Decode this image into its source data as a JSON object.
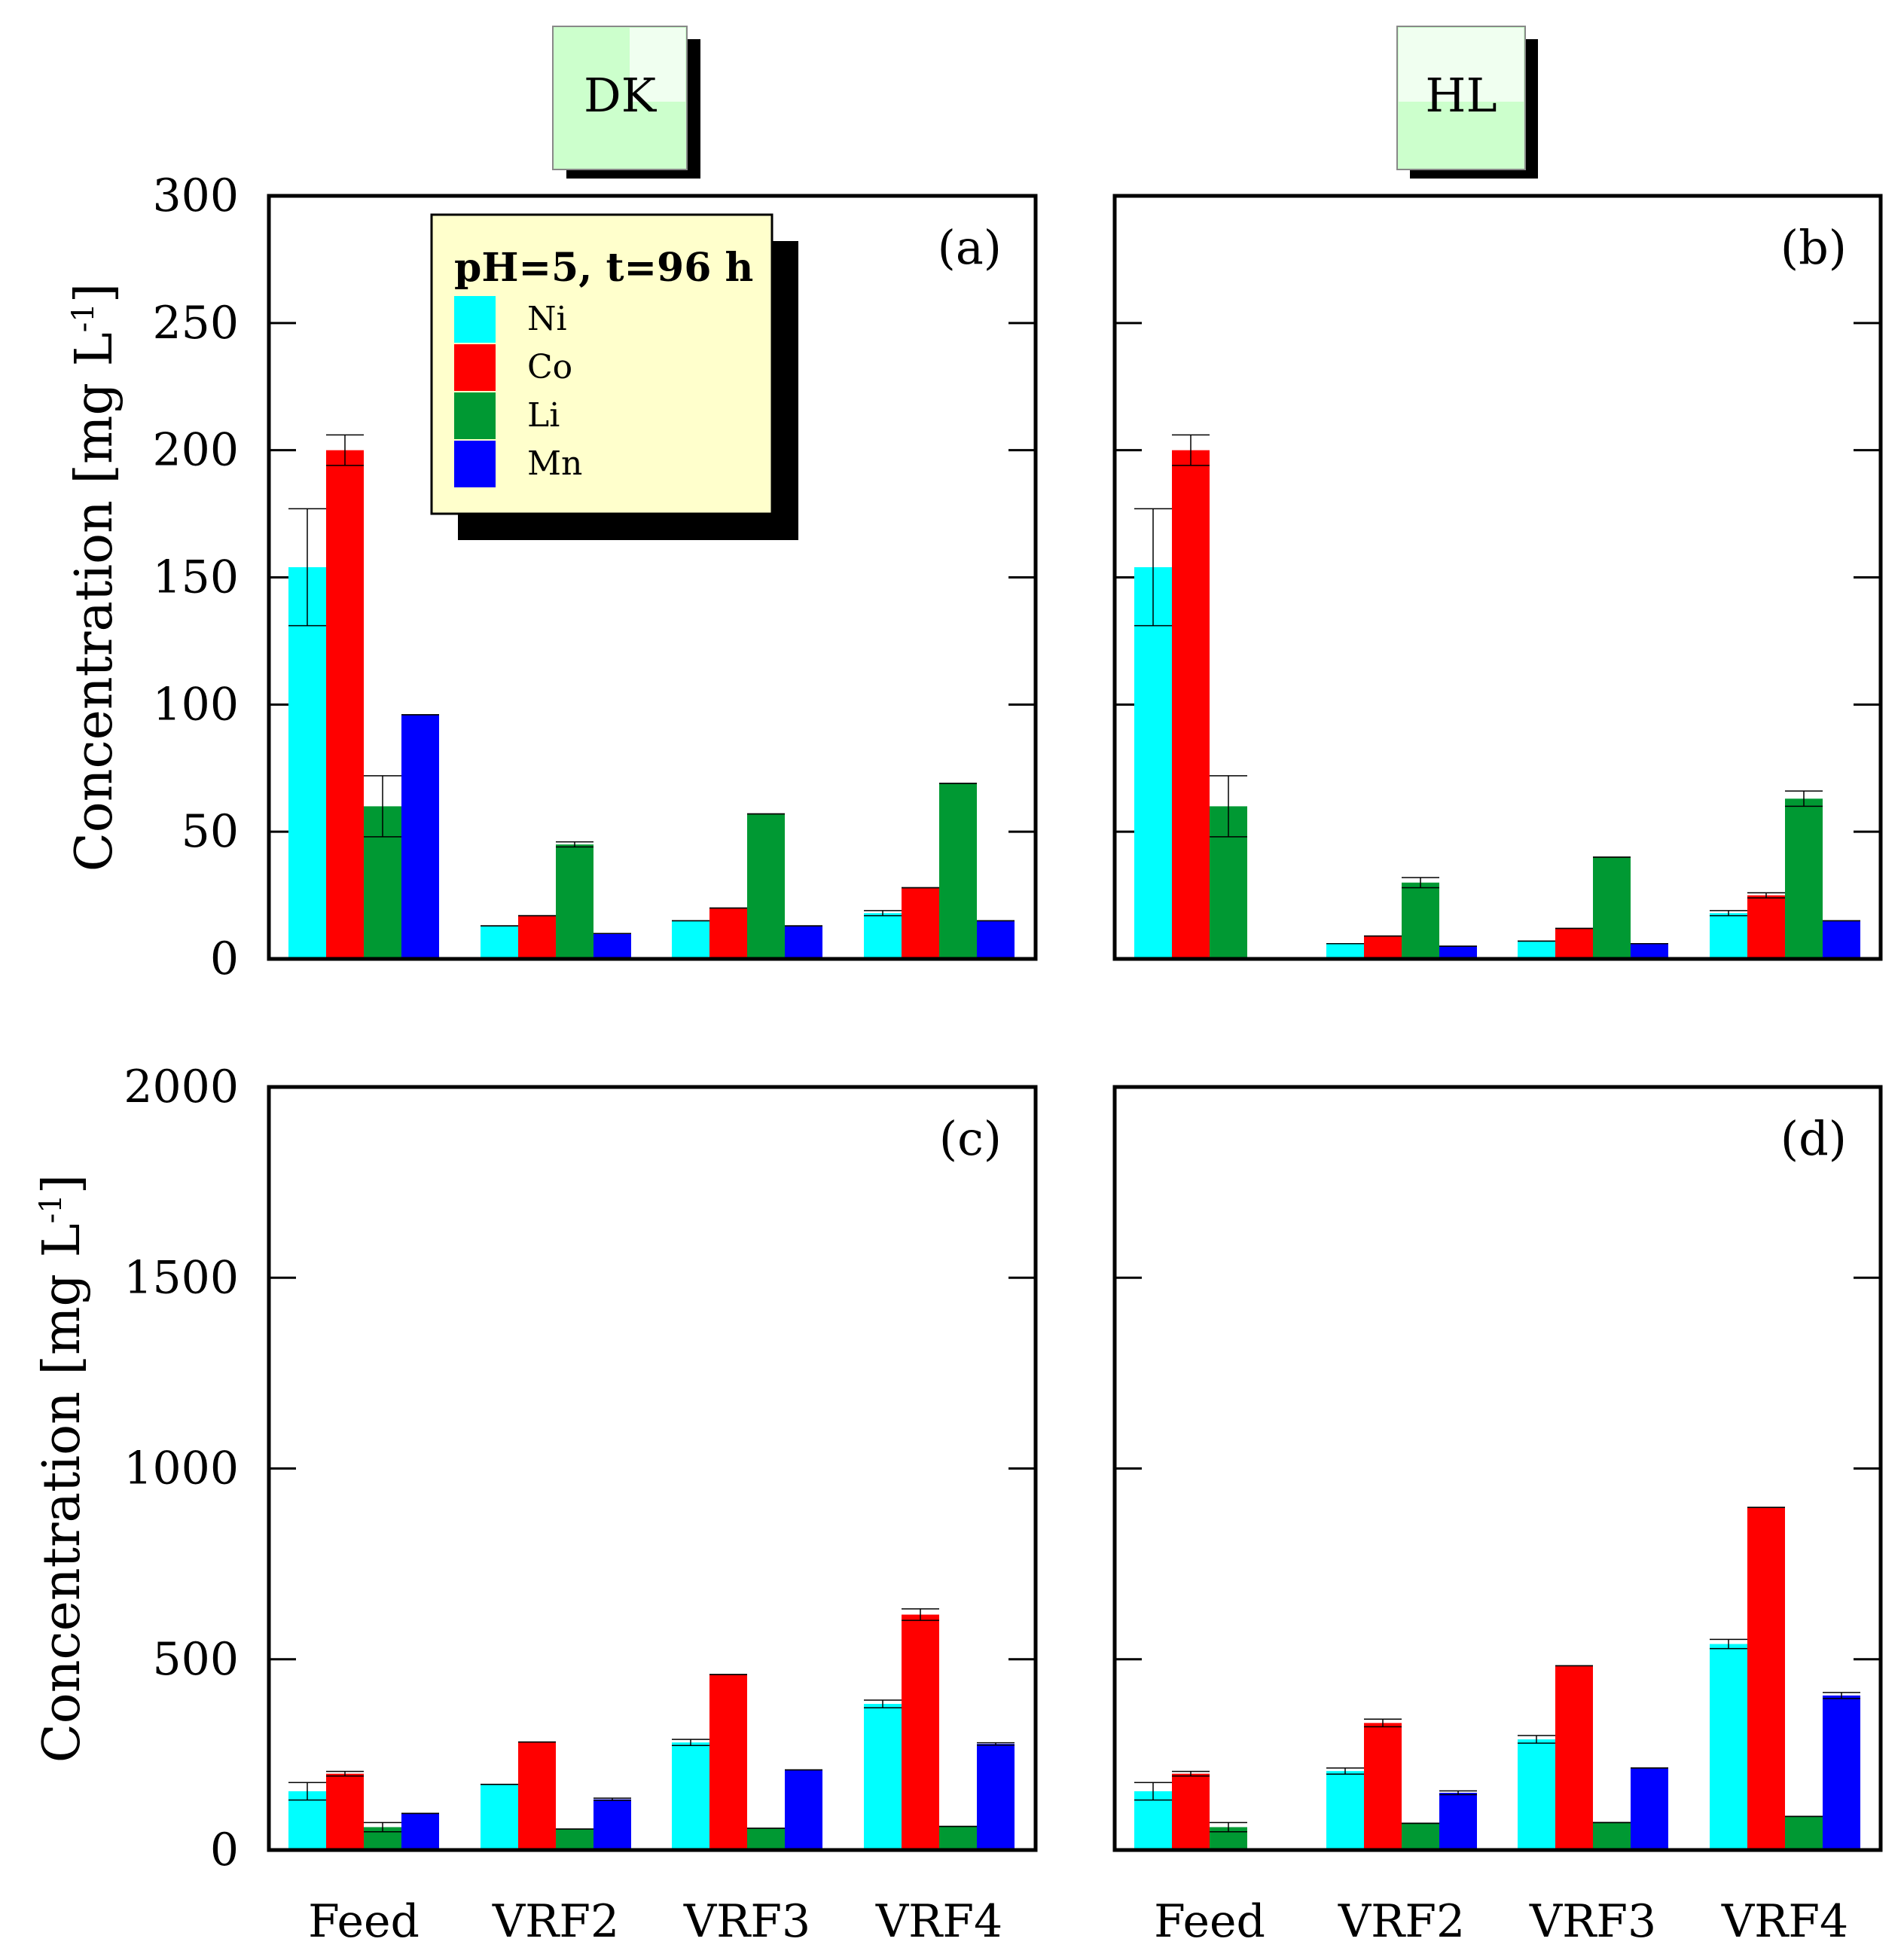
{
  "headers": {
    "left": "DK",
    "right": "HL"
  },
  "legend": {
    "title": "pH=5, t=96 h",
    "entries": [
      {
        "label": "Ni",
        "color": "#00ffff"
      },
      {
        "label": "Co",
        "color": "#ff0000"
      },
      {
        "label": "Li",
        "color": "#009933"
      },
      {
        "label": "Mn",
        "color": "#0000ff"
      }
    ]
  },
  "colors": {
    "Ni": "#00ffff",
    "Co": "#ff0000",
    "Li": "#009933",
    "Mn": "#0000ff",
    "header_box": "#ccffcc",
    "legend_box": "#ffffcc"
  },
  "chart_data": [
    {
      "id": "a",
      "tag": "(a)",
      "type": "bar",
      "ylabel": "Concentration [mg L-1]",
      "ylim": [
        0,
        300
      ],
      "yticks": [
        0,
        50,
        100,
        150,
        200,
        250,
        300
      ],
      "categories": [
        "Feed",
        "VRF2",
        "VRF3",
        "VRF4"
      ],
      "series": [
        {
          "name": "Ni",
          "values": [
            154,
            13,
            15,
            18
          ],
          "errors": [
            23,
            0,
            0,
            1
          ]
        },
        {
          "name": "Co",
          "values": [
            200,
            17,
            20,
            28
          ],
          "errors": [
            6,
            0,
            0,
            0
          ]
        },
        {
          "name": "Li",
          "values": [
            60,
            45,
            57,
            69
          ],
          "errors": [
            12,
            1,
            0,
            0
          ]
        },
        {
          "name": "Mn",
          "values": [
            96,
            10,
            13,
            15
          ],
          "errors": [
            0,
            0,
            0,
            0
          ]
        }
      ]
    },
    {
      "id": "b",
      "tag": "(b)",
      "type": "bar",
      "ylabel": "",
      "ylim": [
        0,
        300
      ],
      "yticks": [
        0,
        50,
        100,
        150,
        200,
        250,
        300
      ],
      "categories": [
        "Feed",
        "VRF2",
        "VRF3",
        "VRF4"
      ],
      "series": [
        {
          "name": "Ni",
          "values": [
            154,
            6,
            7,
            18
          ],
          "errors": [
            23,
            0,
            0,
            1
          ]
        },
        {
          "name": "Co",
          "values": [
            200,
            9,
            12,
            25
          ],
          "errors": [
            6,
            0,
            0,
            1
          ]
        },
        {
          "name": "Li",
          "values": [
            60,
            30,
            40,
            63
          ],
          "errors": [
            12,
            2,
            0,
            3
          ]
        },
        {
          "name": "Mn",
          "values": [
            0,
            5,
            6,
            15
          ],
          "errors": [
            0,
            0,
            0,
            0
          ]
        }
      ]
    },
    {
      "id": "c",
      "tag": "(c)",
      "type": "bar",
      "ylabel": "Concentration [mg L-1]",
      "ylim": [
        0,
        2000
      ],
      "yticks": [
        0,
        500,
        1000,
        1500,
        2000
      ],
      "categories": [
        "Feed",
        "VRF2",
        "VRF3",
        "VRF4"
      ],
      "series": [
        {
          "name": "Ni",
          "values": [
            154,
            172,
            282,
            383
          ],
          "errors": [
            23,
            0,
            8,
            10
          ]
        },
        {
          "name": "Co",
          "values": [
            200,
            283,
            460,
            617
          ],
          "errors": [
            6,
            0,
            0,
            15
          ]
        },
        {
          "name": "Li",
          "values": [
            60,
            55,
            57,
            62
          ],
          "errors": [
            12,
            0,
            0,
            0
          ]
        },
        {
          "name": "Mn",
          "values": [
            96,
            133,
            210,
            278
          ],
          "errors": [
            0,
            3,
            0,
            3
          ]
        }
      ]
    },
    {
      "id": "d",
      "tag": "(d)",
      "type": "bar",
      "ylabel": "",
      "ylim": [
        0,
        2000
      ],
      "yticks": [
        0,
        500,
        1000,
        1500,
        2000
      ],
      "categories": [
        "Feed",
        "VRF2",
        "VRF3",
        "VRF4"
      ],
      "series": [
        {
          "name": "Ni",
          "values": [
            154,
            207,
            290,
            540
          ],
          "errors": [
            23,
            8,
            10,
            12
          ]
        },
        {
          "name": "Co",
          "values": [
            200,
            333,
            483,
            898
          ],
          "errors": [
            6,
            10,
            0,
            0
          ]
        },
        {
          "name": "Li",
          "values": [
            60,
            70,
            72,
            88
          ],
          "errors": [
            12,
            0,
            0,
            0
          ]
        },
        {
          "name": "Mn",
          "values": [
            0,
            150,
            215,
            405
          ],
          "errors": [
            0,
            5,
            0,
            8
          ]
        }
      ]
    }
  ]
}
